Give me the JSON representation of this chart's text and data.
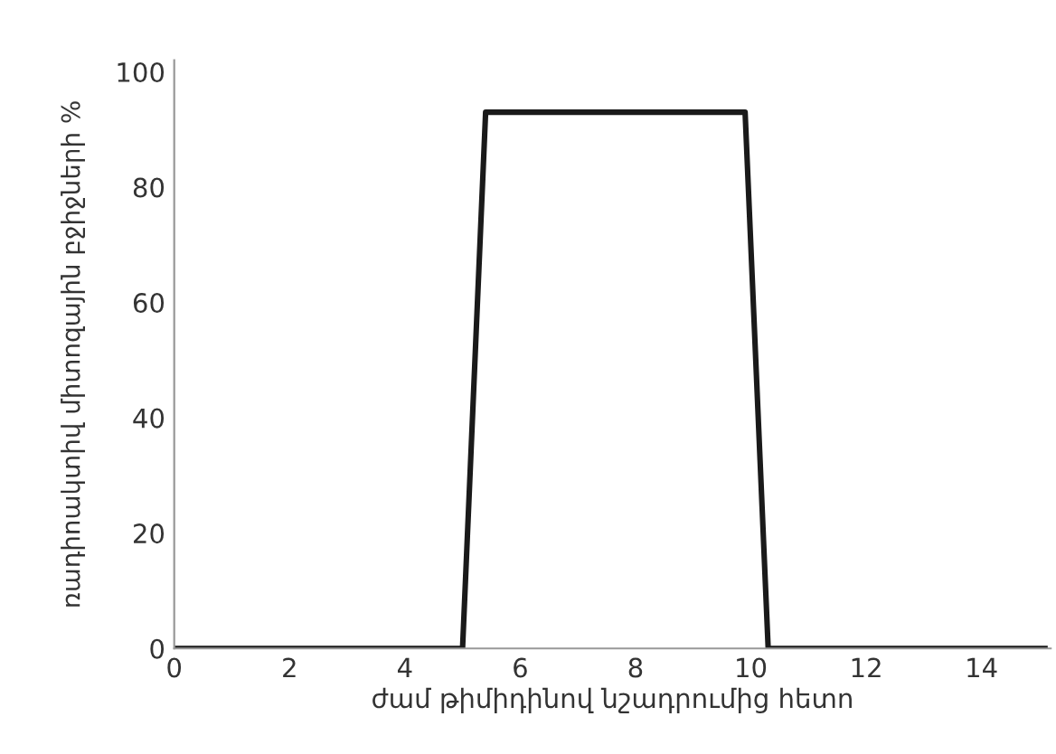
{
  "chart_data": {
    "type": "line",
    "xlabel": "ժամ թիմիդինով նշադրումից հետո",
    "ylabel": "ռադիոակտիվ միտոզային բջիջների %",
    "x": [
      0,
      5.0,
      5.4,
      9.9,
      10.3,
      15.1
    ],
    "series": [
      {
        "color": "#1a1a1a",
        "values": [
          0,
          0,
          93,
          93,
          0,
          0
        ]
      }
    ],
    "xlim": [
      0,
      15.2
    ],
    "ylim": [
      0,
      102
    ],
    "xticks": [
      0,
      2,
      4,
      6,
      8,
      10,
      12,
      14
    ],
    "yticks": [
      0,
      20,
      40,
      60,
      80,
      100
    ],
    "grid": false,
    "legend": false,
    "marker": "none",
    "line_style": "solid"
  }
}
